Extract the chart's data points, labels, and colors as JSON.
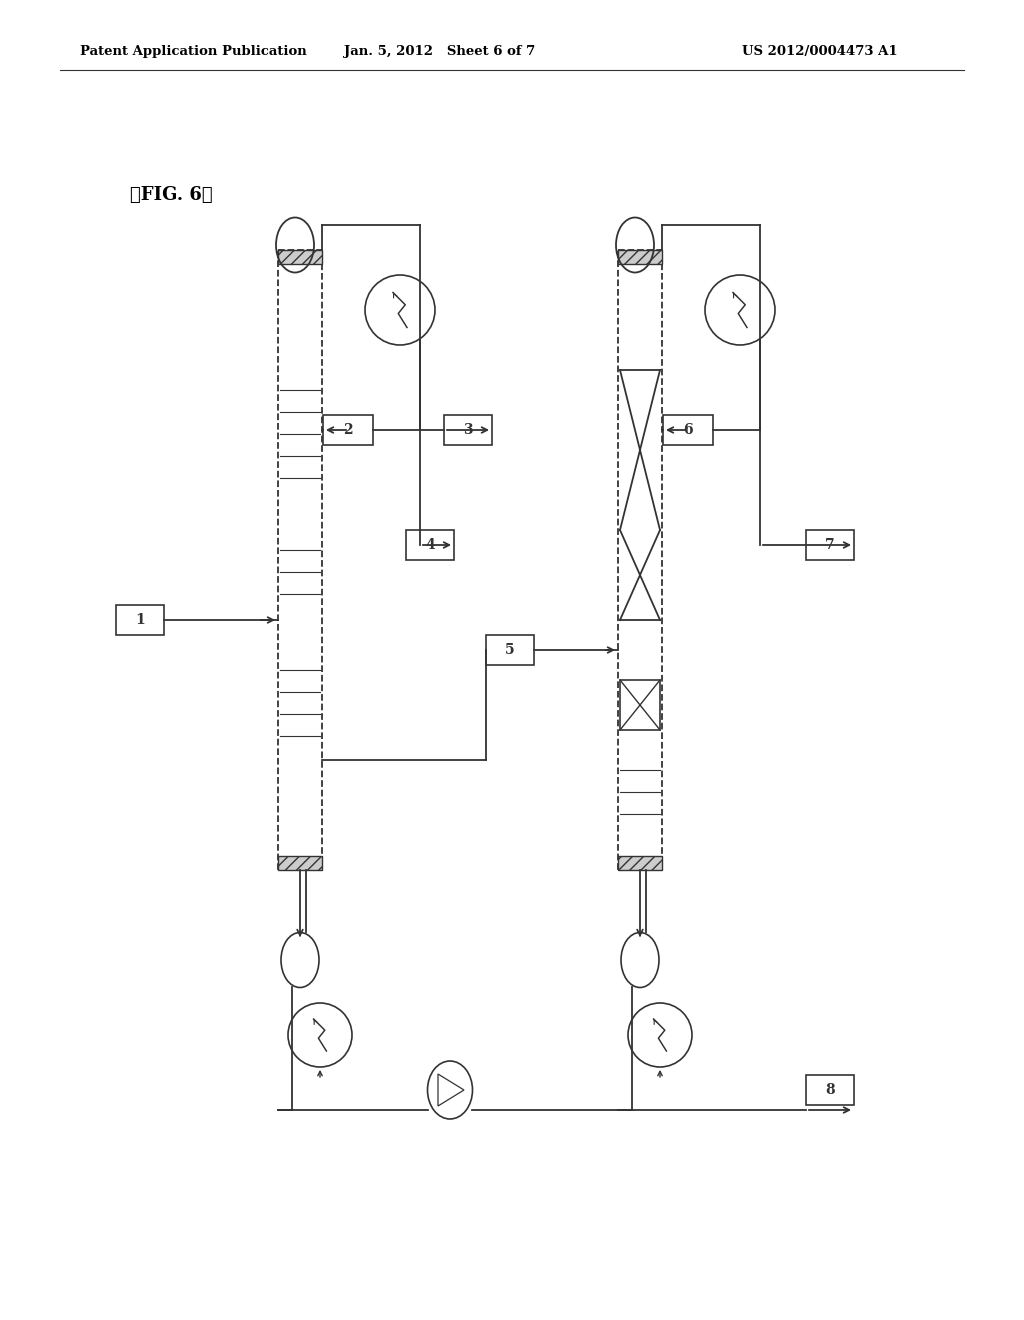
{
  "bg_color": "#ffffff",
  "header_left": "Patent Application Publication",
  "header_mid": "Jan. 5, 2012   Sheet 6 of 7",
  "header_right": "US 2012/0004473 A1",
  "fig_label": "【FIG. 6】",
  "line_color": "#333333"
}
